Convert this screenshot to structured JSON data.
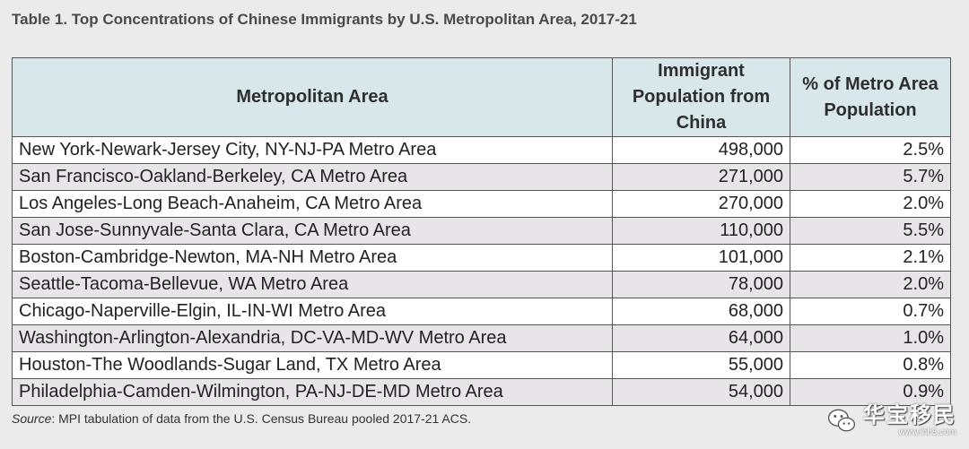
{
  "title": "Table 1. Top Concentrations of Chinese Immigrants by U.S. Metropolitan Area, 2017-21",
  "table": {
    "headers": [
      "Metropolitan Area",
      "Immigrant Population from China",
      "% of Metro Area Population"
    ],
    "rows": [
      [
        "New York-Newark-Jersey City, NY-NJ-PA Metro Area",
        "498,000",
        "2.5%"
      ],
      [
        "San Francisco-Oakland-Berkeley, CA Metro Area",
        "271,000",
        "5.7%"
      ],
      [
        "Los Angeles-Long Beach-Anaheim, CA Metro Area",
        "270,000",
        "2.0%"
      ],
      [
        "San Jose-Sunnyvale-Santa Clara, CA Metro Area",
        "110,000",
        "5.5%"
      ],
      [
        "Boston-Cambridge-Newton, MA-NH Metro Area",
        "101,000",
        "2.1%"
      ],
      [
        "Seattle-Tacoma-Bellevue, WA Metro Area",
        "78,000",
        "2.0%"
      ],
      [
        "Chicago-Naperville-Elgin, IL-IN-WI Metro Area",
        "68,000",
        "0.7%"
      ],
      [
        "Washington-Arlington-Alexandria, DC-VA-MD-WV Metro Area",
        "64,000",
        "1.0%"
      ],
      [
        "Houston-The Woodlands-Sugar Land, TX Metro Area",
        "55,000",
        "0.8%"
      ],
      [
        "Philadelphia-Camden-Wilmington, PA-NJ-DE-MD Metro Area",
        "54,000",
        "0.9%"
      ]
    ]
  },
  "source": {
    "label": "Source",
    "text": ": MPI tabulation of data from the U.S. Census Bureau pooled 2017-21 ACS."
  },
  "watermark": {
    "icon": "wechat-icon",
    "text": "华宝移民",
    "url": "www.ihb8.com"
  },
  "colors": {
    "header_bg": "#d7e7ea",
    "row_alt_bg": "#e7e5e8",
    "page_bg": "#ecebeb",
    "border": "#555555"
  }
}
